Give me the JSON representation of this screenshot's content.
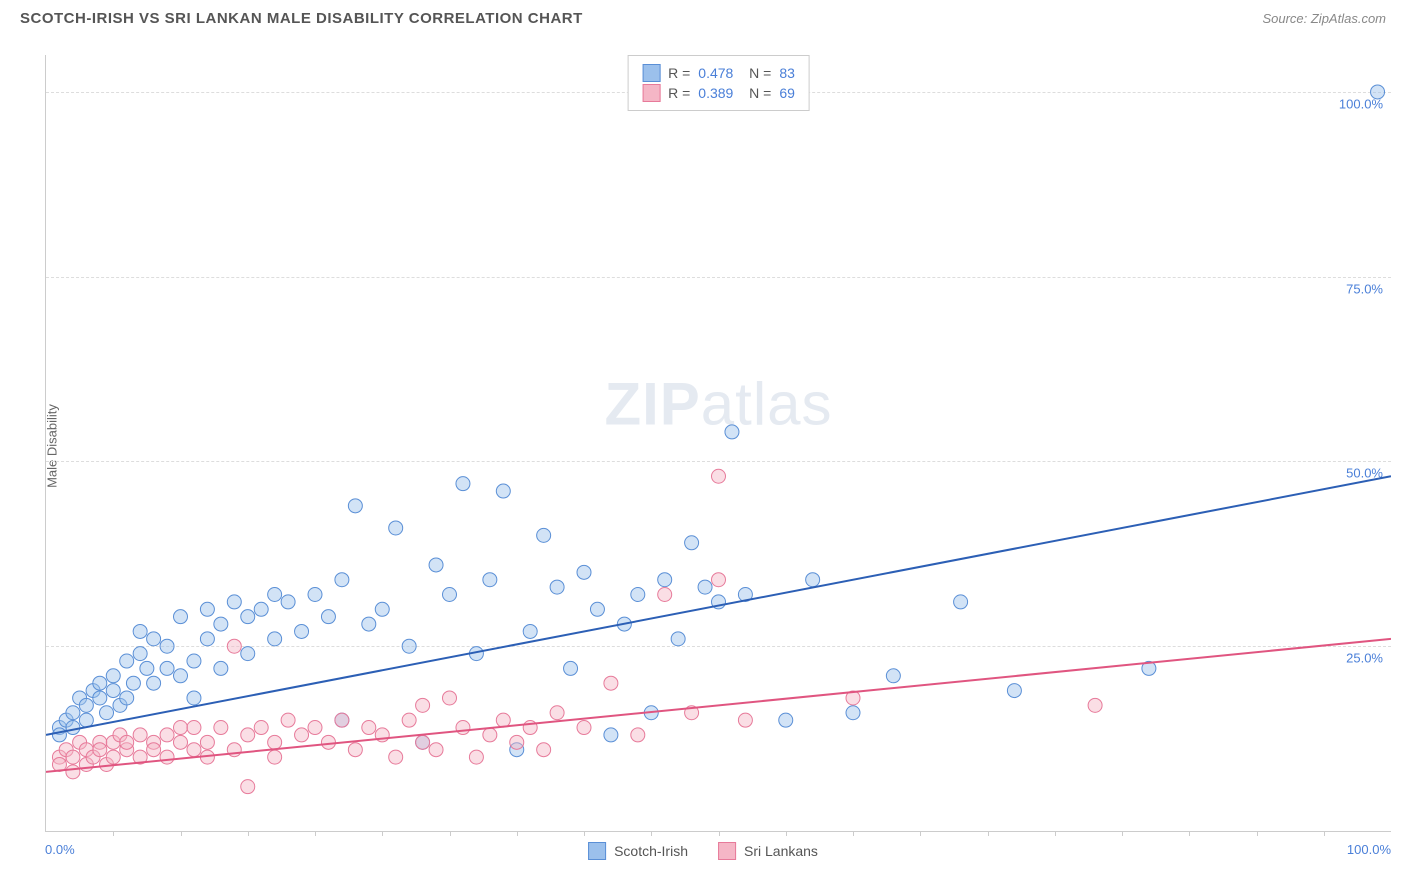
{
  "title": "SCOTCH-IRISH VS SRI LANKAN MALE DISABILITY CORRELATION CHART",
  "source_label": "Source: ZipAtlas.com",
  "y_axis_label": "Male Disability",
  "watermark_bold": "ZIP",
  "watermark_light": "atlas",
  "chart": {
    "type": "scatter",
    "xlim": [
      0,
      100
    ],
    "ylim": [
      0,
      105
    ],
    "x_tick_labels": {
      "left": "0.0%",
      "right": "100.0%"
    },
    "y_ticks": [
      {
        "v": 25,
        "label": "25.0%"
      },
      {
        "v": 50,
        "label": "50.0%"
      },
      {
        "v": 75,
        "label": "75.0%"
      },
      {
        "v": 100,
        "label": "100.0%"
      }
    ],
    "x_minor_ticks": [
      5,
      10,
      15,
      20,
      25,
      30,
      35,
      40,
      45,
      50,
      55,
      60,
      65,
      70,
      75,
      80,
      85,
      90,
      95
    ],
    "grid_color": "#dddddd",
    "background_color": "#ffffff",
    "marker_radius": 7,
    "marker_opacity": 0.45,
    "line_width": 2,
    "series": [
      {
        "name": "Scotch-Irish",
        "color_fill": "#9bc0ec",
        "color_stroke": "#5a8fd6",
        "line_color": "#2c5fb5",
        "R": "0.478",
        "N": "83",
        "trend": {
          "x1": 0,
          "y1": 13,
          "x2": 100,
          "y2": 48
        },
        "points": [
          [
            1,
            14
          ],
          [
            1,
            13
          ],
          [
            1.5,
            15
          ],
          [
            2,
            16
          ],
          [
            2,
            14
          ],
          [
            2.5,
            18
          ],
          [
            3,
            15
          ],
          [
            3,
            17
          ],
          [
            3.5,
            19
          ],
          [
            4,
            18
          ],
          [
            4,
            20
          ],
          [
            4.5,
            16
          ],
          [
            5,
            21
          ],
          [
            5,
            19
          ],
          [
            5.5,
            17
          ],
          [
            6,
            23
          ],
          [
            6,
            18
          ],
          [
            6.5,
            20
          ],
          [
            7,
            24
          ],
          [
            7,
            27
          ],
          [
            7.5,
            22
          ],
          [
            8,
            26
          ],
          [
            8,
            20
          ],
          [
            9,
            25
          ],
          [
            9,
            22
          ],
          [
            10,
            21
          ],
          [
            10,
            29
          ],
          [
            11,
            23
          ],
          [
            11,
            18
          ],
          [
            12,
            30
          ],
          [
            12,
            26
          ],
          [
            13,
            28
          ],
          [
            13,
            22
          ],
          [
            14,
            31
          ],
          [
            15,
            24
          ],
          [
            15,
            29
          ],
          [
            16,
            30
          ],
          [
            17,
            26
          ],
          [
            17,
            32
          ],
          [
            18,
            31
          ],
          [
            19,
            27
          ],
          [
            20,
            32
          ],
          [
            21,
            29
          ],
          [
            22,
            34
          ],
          [
            22,
            15
          ],
          [
            23,
            44
          ],
          [
            24,
            28
          ],
          [
            25,
            30
          ],
          [
            26,
            41
          ],
          [
            27,
            25
          ],
          [
            28,
            12
          ],
          [
            29,
            36
          ],
          [
            30,
            32
          ],
          [
            31,
            47
          ],
          [
            32,
            24
          ],
          [
            33,
            34
          ],
          [
            34,
            46
          ],
          [
            35,
            11
          ],
          [
            36,
            27
          ],
          [
            37,
            40
          ],
          [
            38,
            33
          ],
          [
            39,
            22
          ],
          [
            40,
            35
          ],
          [
            41,
            30
          ],
          [
            42,
            13
          ],
          [
            43,
            28
          ],
          [
            44,
            32
          ],
          [
            45,
            16
          ],
          [
            46,
            34
          ],
          [
            47,
            26
          ],
          [
            48,
            39
          ],
          [
            49,
            33
          ],
          [
            50,
            31
          ],
          [
            51,
            54
          ],
          [
            52,
            32
          ],
          [
            55,
            15
          ],
          [
            57,
            34
          ],
          [
            60,
            16
          ],
          [
            63,
            21
          ],
          [
            68,
            31
          ],
          [
            72,
            19
          ],
          [
            82,
            22
          ],
          [
            99,
            100
          ]
        ]
      },
      {
        "name": "Sri Lankans",
        "color_fill": "#f5b6c6",
        "color_stroke": "#e77a9a",
        "line_color": "#e05580",
        "R": "0.389",
        "N": "69",
        "trend": {
          "x1": 0,
          "y1": 8,
          "x2": 100,
          "y2": 26
        },
        "points": [
          [
            1,
            10
          ],
          [
            1,
            9
          ],
          [
            1.5,
            11
          ],
          [
            2,
            10
          ],
          [
            2,
            8
          ],
          [
            2.5,
            12
          ],
          [
            3,
            9
          ],
          [
            3,
            11
          ],
          [
            3.5,
            10
          ],
          [
            4,
            12
          ],
          [
            4,
            11
          ],
          [
            4.5,
            9
          ],
          [
            5,
            12
          ],
          [
            5,
            10
          ],
          [
            5.5,
            13
          ],
          [
            6,
            11
          ],
          [
            6,
            12
          ],
          [
            7,
            10
          ],
          [
            7,
            13
          ],
          [
            8,
            12
          ],
          [
            8,
            11
          ],
          [
            9,
            13
          ],
          [
            9,
            10
          ],
          [
            10,
            14
          ],
          [
            10,
            12
          ],
          [
            11,
            11
          ],
          [
            11,
            14
          ],
          [
            12,
            12
          ],
          [
            12,
            10
          ],
          [
            13,
            14
          ],
          [
            14,
            11
          ],
          [
            14,
            25
          ],
          [
            15,
            13
          ],
          [
            15,
            6
          ],
          [
            16,
            14
          ],
          [
            17,
            12
          ],
          [
            17,
            10
          ],
          [
            18,
            15
          ],
          [
            19,
            13
          ],
          [
            20,
            14
          ],
          [
            21,
            12
          ],
          [
            22,
            15
          ],
          [
            23,
            11
          ],
          [
            24,
            14
          ],
          [
            25,
            13
          ],
          [
            26,
            10
          ],
          [
            27,
            15
          ],
          [
            28,
            12
          ],
          [
            28,
            17
          ],
          [
            29,
            11
          ],
          [
            30,
            18
          ],
          [
            31,
            14
          ],
          [
            32,
            10
          ],
          [
            33,
            13
          ],
          [
            34,
            15
          ],
          [
            35,
            12
          ],
          [
            36,
            14
          ],
          [
            37,
            11
          ],
          [
            38,
            16
          ],
          [
            40,
            14
          ],
          [
            42,
            20
          ],
          [
            44,
            13
          ],
          [
            46,
            32
          ],
          [
            48,
            16
          ],
          [
            50,
            48
          ],
          [
            50,
            34
          ],
          [
            52,
            15
          ],
          [
            60,
            18
          ],
          [
            78,
            17
          ]
        ]
      }
    ]
  },
  "colors": {
    "title": "#555555",
    "source": "#888888",
    "tick_label": "#4a7fd8",
    "axis": "#cccccc"
  },
  "legend": {
    "items": [
      {
        "label": "Scotch-Irish",
        "fill": "#9bc0ec",
        "stroke": "#5a8fd6"
      },
      {
        "label": "Sri Lankans",
        "fill": "#f5b6c6",
        "stroke": "#e77a9a"
      }
    ]
  }
}
